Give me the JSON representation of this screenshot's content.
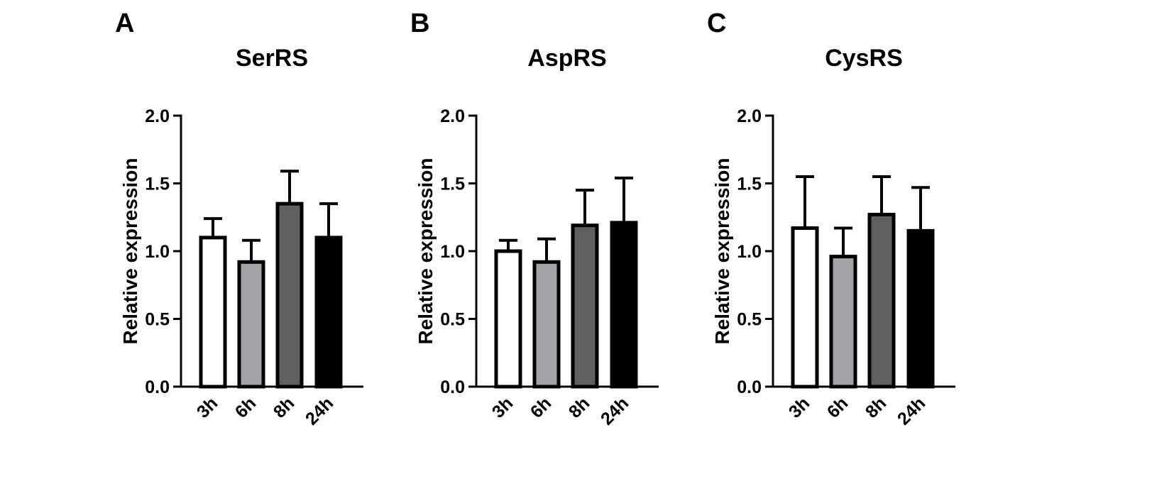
{
  "chart_data": [
    {
      "panel": "A",
      "type": "bar",
      "title": "SerRS",
      "ylabel": "Relative expression",
      "xlabel": "",
      "categories": [
        "3h",
        "6h",
        "8h",
        "24h"
      ],
      "values": [
        1.1,
        0.92,
        1.35,
        1.1
      ],
      "errors": [
        0.14,
        0.16,
        0.24,
        0.25
      ],
      "colors": [
        "#ffffff",
        "#a3a3a7",
        "#5f5f5f",
        "#000000"
      ],
      "ylim": [
        0,
        2.0
      ],
      "yticks": [
        "0.0",
        "0.5",
        "1.0",
        "1.5",
        "2.0"
      ],
      "grid": false
    },
    {
      "panel": "B",
      "type": "bar",
      "title": "AspRS",
      "ylabel": "Relative expression",
      "xlabel": "",
      "categories": [
        "3h",
        "6h",
        "8h",
        "24h"
      ],
      "values": [
        1.0,
        0.92,
        1.19,
        1.21
      ],
      "errors": [
        0.08,
        0.17,
        0.26,
        0.33
      ],
      "colors": [
        "#ffffff",
        "#a3a3a7",
        "#5f5f5f",
        "#000000"
      ],
      "ylim": [
        0,
        2.0
      ],
      "yticks": [
        "0.0",
        "0.5",
        "1.0",
        "1.5",
        "2.0"
      ],
      "grid": false
    },
    {
      "panel": "C",
      "type": "bar",
      "title": "CysRS",
      "ylabel": "Relative expression",
      "xlabel": "",
      "categories": [
        "3h",
        "6h",
        "8h",
        "24h"
      ],
      "values": [
        1.17,
        0.96,
        1.27,
        1.15
      ],
      "errors": [
        0.38,
        0.21,
        0.28,
        0.32
      ],
      "colors": [
        "#ffffff",
        "#a3a3a7",
        "#5f5f5f",
        "#000000"
      ],
      "ylim": [
        0,
        2.0
      ],
      "yticks": [
        "0.0",
        "0.5",
        "1.0",
        "1.5",
        "2.0"
      ],
      "grid": false
    }
  ]
}
